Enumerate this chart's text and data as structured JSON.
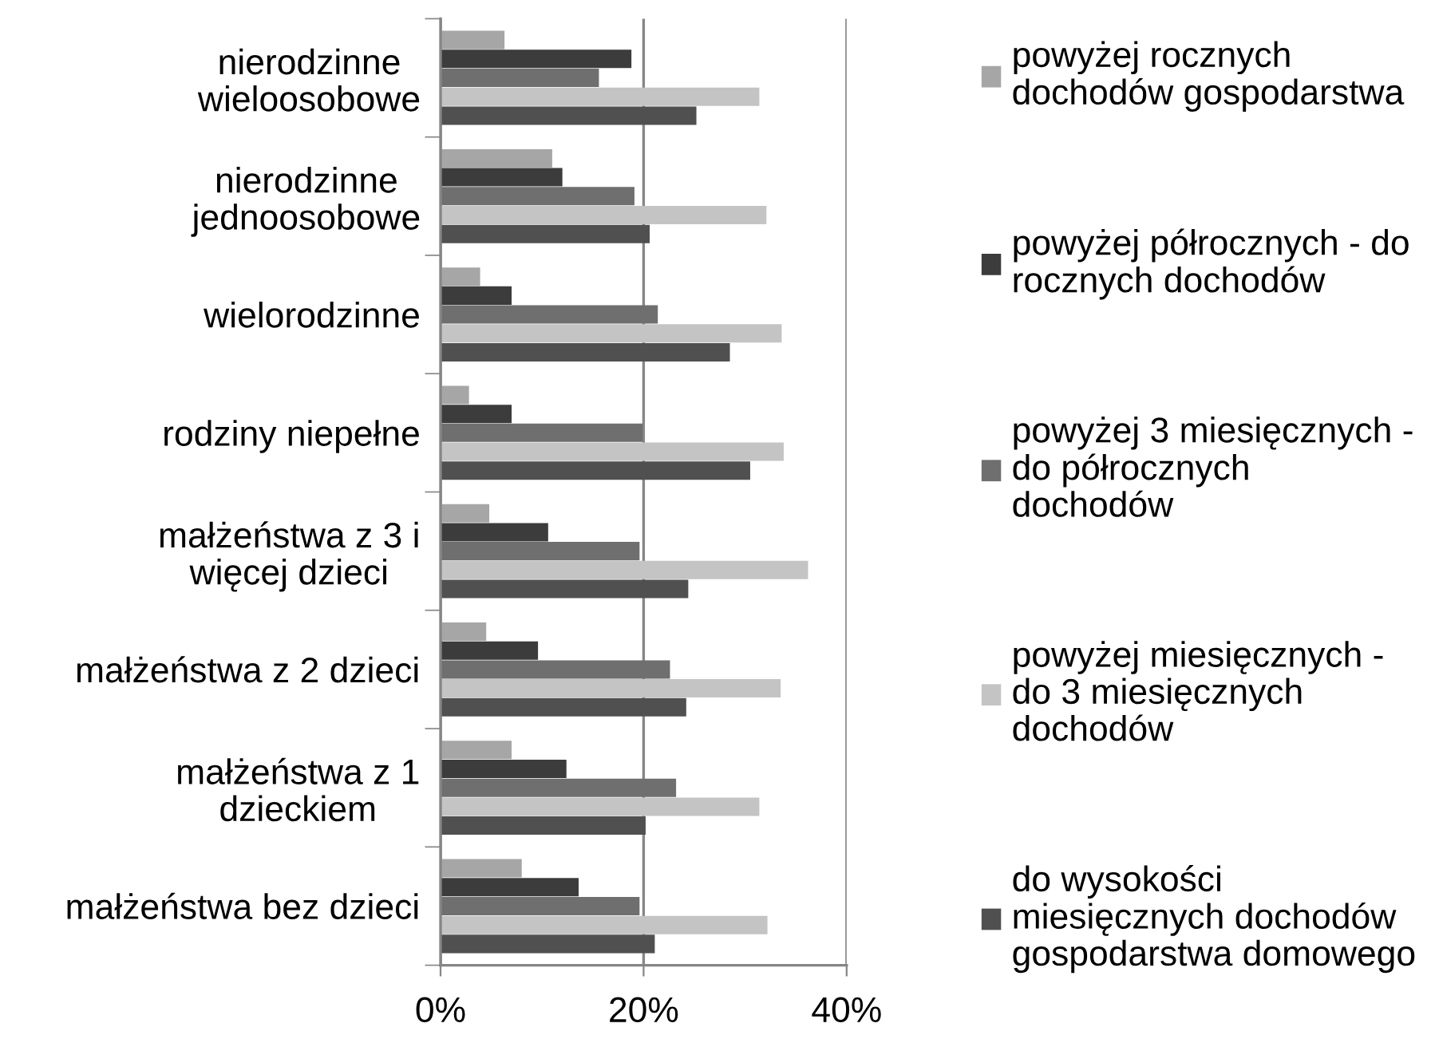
{
  "chart_data": {
    "type": "bar",
    "orientation": "horizontal",
    "categories": [
      "nierodzinne\nwieloosobowe",
      "nierodzinne\njednoosobowe",
      "wielorodzinne",
      "rodziny niepełne",
      "małżeństwa z 3 i\nwięcej dzieci",
      "małżeństwa z 2 dzieci",
      "małżeństwa z 1\ndzieckiem",
      "małżeństwa bez dzieci"
    ],
    "series": [
      {
        "name": "powyżej rocznych\ndochodów gospodarstwa",
        "color": "#a6a6a6",
        "values": [
          6.3,
          11.0,
          3.9,
          2.8,
          4.8,
          4.5,
          7.0,
          8.0
        ]
      },
      {
        "name": "powyżej półrocznych - do\nrocznych dochodów",
        "color": "#3c3c3c",
        "values": [
          18.8,
          12.0,
          7.0,
          7.0,
          10.6,
          9.6,
          12.4,
          13.6
        ]
      },
      {
        "name": "powyżej 3 miesięcznych -\ndo półrocznych\ndochodów",
        "color": "#6f6f6f",
        "values": [
          15.6,
          19.1,
          21.4,
          19.9,
          19.6,
          22.6,
          23.2,
          19.6
        ]
      },
      {
        "name": "powyżej miesięcznych -\ndo 3 miesięcznych\ndochodów",
        "color": "#c4c4c4",
        "values": [
          31.4,
          32.1,
          33.6,
          33.8,
          36.2,
          33.5,
          31.4,
          32.2
        ]
      },
      {
        "name": "do wysokości\nmiesięcznych dochodów\ngospodarstwa domowego",
        "color": "#505050",
        "values": [
          25.2,
          20.6,
          28.5,
          30.5,
          24.4,
          24.2,
          20.2,
          21.1
        ]
      }
    ],
    "xlim": [
      0,
      40
    ],
    "xticks": [
      {
        "value": 0,
        "label": "0%"
      },
      {
        "value": 20,
        "label": "20%"
      },
      {
        "value": 40,
        "label": "40%"
      }
    ],
    "grid": "x",
    "legend": "right"
  }
}
